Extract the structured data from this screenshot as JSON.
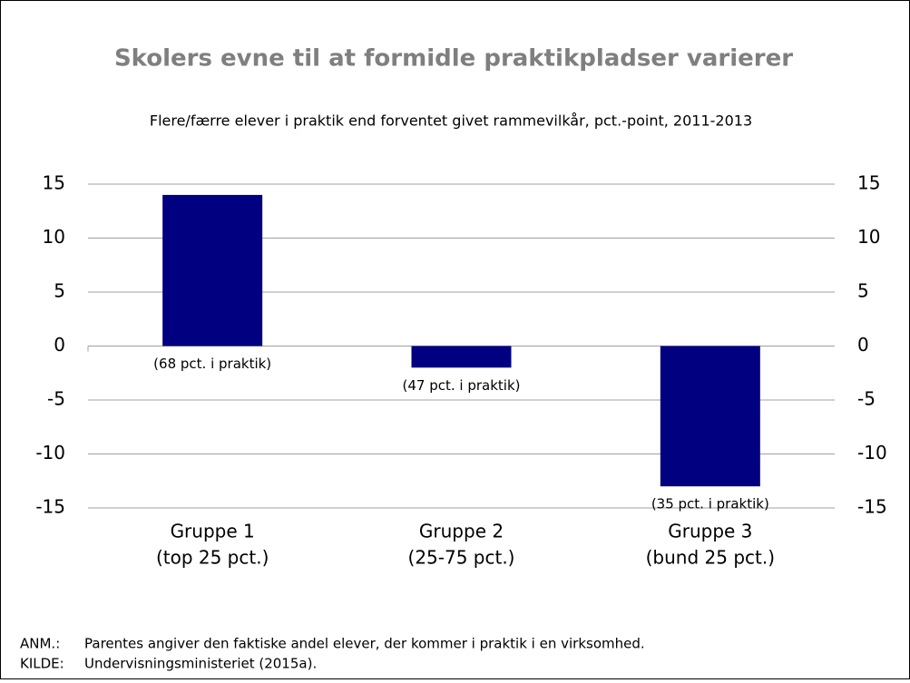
{
  "chart_data": {
    "type": "bar",
    "title": "Skolers evne til at formidle praktikpladser varierer",
    "subtitle": "Flere/færre elever i praktik end forventet givet rammevilkår, pct.-point, 2011-2013",
    "categories": [
      [
        "Gruppe 1",
        "(top 25 pct.)"
      ],
      [
        "Gruppe 2",
        "(25-75 pct.)"
      ],
      [
        "Gruppe 3",
        "(bund 25 pct.)"
      ]
    ],
    "values": [
      14,
      -2,
      -13
    ],
    "bar_notes": [
      "(68 pct. i praktik)",
      "(47 pct. i praktik)",
      "(35 pct. i praktik)"
    ],
    "color": "#000080",
    "ylim": [
      -15,
      15
    ],
    "yticks": [
      -15,
      -10,
      -5,
      0,
      5,
      10,
      15
    ],
    "y2lim": [
      -15,
      15
    ],
    "y2ticks": [
      -15,
      -10,
      -5,
      0,
      5,
      10,
      15
    ],
    "grid": true,
    "notes": [
      {
        "label": "ANM.:",
        "text": "Parentes angiver den faktiske andel elever, der kommer i praktik i en virksomhed."
      },
      {
        "label": "KILDE:",
        "text": "Undervisningsministeriet (2015a)."
      }
    ]
  }
}
